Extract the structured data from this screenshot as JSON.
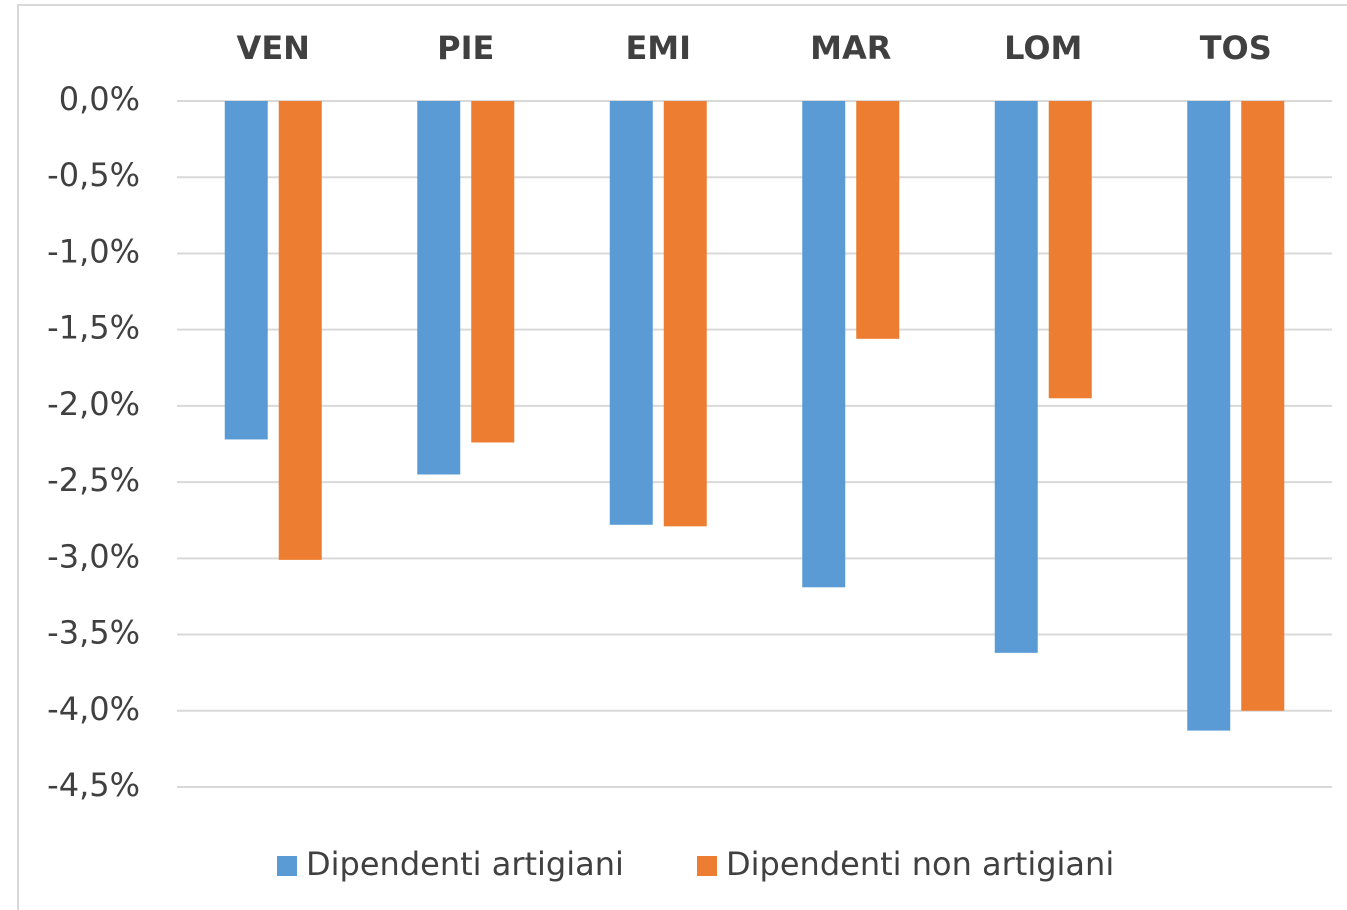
{
  "chart_data": {
    "type": "bar",
    "categories": [
      "VEN",
      "PIE",
      "EMI",
      "MAR",
      "LOM",
      "TOS"
    ],
    "series": [
      {
        "name": "Dipendenti artigiani",
        "color": "#5b9bd5",
        "values": [
          -2.22,
          -2.45,
          -2.78,
          -3.19,
          -3.62,
          -4.13
        ]
      },
      {
        "name": "Dipendenti non artigiani",
        "color": "#ed7d31",
        "values": [
          -3.01,
          -2.24,
          -2.79,
          -1.56,
          -1.95,
          -4.0
        ]
      }
    ],
    "ylim": [
      -4.5,
      0
    ],
    "yticks": [
      {
        "value": 0,
        "label": "0,0%"
      },
      {
        "value": -0.5,
        "label": "-0,5%"
      },
      {
        "value": -1,
        "label": "-1,0%"
      },
      {
        "value": -1.5,
        "label": "-1,5%"
      },
      {
        "value": -2,
        "label": "-2,0%"
      },
      {
        "value": -2.5,
        "label": "-2,5%"
      },
      {
        "value": -3,
        "label": "-3,0%"
      },
      {
        "value": -3.5,
        "label": "-3,5%"
      },
      {
        "value": -4,
        "label": "-4,0%"
      },
      {
        "value": -4.5,
        "label": "-4,5%"
      }
    ],
    "grid": true,
    "legend": "bottom"
  }
}
